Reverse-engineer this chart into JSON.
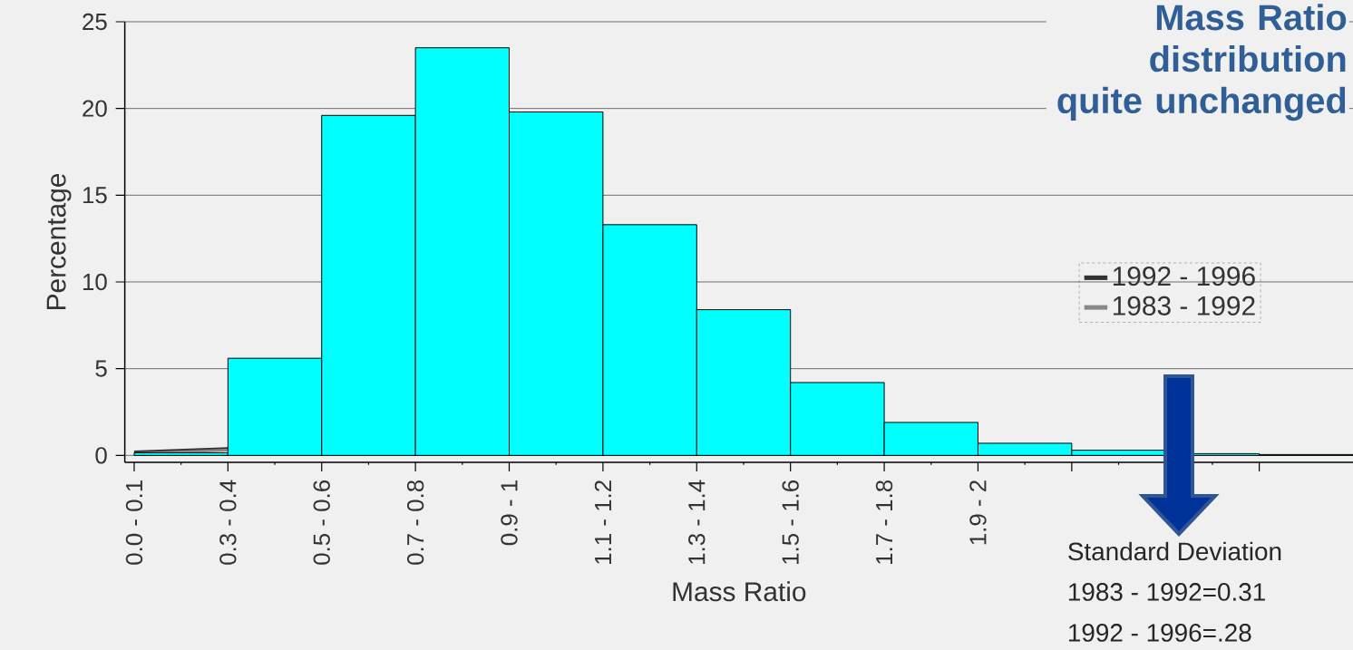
{
  "chart_data": {
    "type": "bar",
    "title": "Mass Ratio distribution quite unchanged",
    "xlabel": "Mass Ratio",
    "ylabel": "Percentage",
    "categories": [
      "0.0 - 0.1",
      "0.3 - 0.4",
      "0.5 - 0.6",
      "0.7 - 0.8",
      "0.9 - 1",
      "1.1 - 1.2",
      "1.3 - 1.4",
      "1.5 - 1.6",
      "1.7 - 1.8",
      "1.9 - 2",
      null,
      null,
      null
    ],
    "values": [
      0.15,
      5.6,
      19.6,
      23.5,
      19.8,
      13.3,
      8.4,
      4.2,
      1.9,
      0.7,
      0.3,
      0.1,
      0.05
    ],
    "color": "#00ffff",
    "series": [
      {
        "name": "1992 - 1996",
        "type": "line",
        "color": "#333333",
        "values": [
          0.2,
          0.4,
          null,
          null,
          null,
          null,
          null,
          null,
          null,
          null,
          null,
          null,
          null
        ]
      },
      {
        "name": "1983 - 1992",
        "type": "line",
        "color": "#888888",
        "values": [
          0.1,
          0.3,
          null,
          null,
          null,
          null,
          null,
          null,
          null,
          null,
          null,
          null,
          null
        ]
      }
    ],
    "ylim": [
      -0.4,
      25
    ],
    "yticks": [
      0,
      5,
      10,
      15,
      20,
      25
    ],
    "grid": "y",
    "legend": "right",
    "annotations": [
      "Standard Deviation",
      "1983 - 1992=0.31",
      "1992 - 1996=.28"
    ]
  }
}
